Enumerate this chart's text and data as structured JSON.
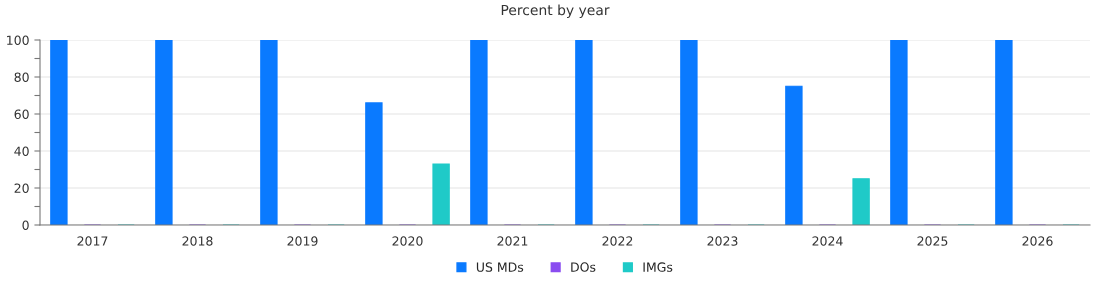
{
  "chart_data": {
    "type": "bar",
    "title": "Percent by year",
    "categories": [
      "2017",
      "2018",
      "2019",
      "2020",
      "2021",
      "2022",
      "2023",
      "2024",
      "2025",
      "2026"
    ],
    "series": [
      {
        "name": "US MDs",
        "color": "#0a7aff",
        "values": [
          100,
          100,
          100,
          66,
          100,
          100,
          100,
          75,
          100,
          100
        ]
      },
      {
        "name": "DOs",
        "color": "#8a4cf0",
        "values": [
          0,
          0,
          0,
          0,
          0,
          0,
          0,
          0,
          0,
          0
        ]
      },
      {
        "name": "IMGs",
        "color": "#1fcac8",
        "values": [
          0,
          0,
          0,
          33,
          0,
          0,
          0,
          25,
          0,
          0
        ]
      }
    ],
    "ylim": [
      0,
      100
    ],
    "yticks": [
      0,
      {
        "value": 10,
        "label": null
      },
      20,
      {
        "value": 30,
        "label": null
      },
      40,
      {
        "value": 50,
        "label": null
      },
      60,
      {
        "value": 70,
        "label": null
      },
      80,
      {
        "value": 90,
        "label": null
      },
      100
    ],
    "grid": "y",
    "legend": "bottom"
  }
}
